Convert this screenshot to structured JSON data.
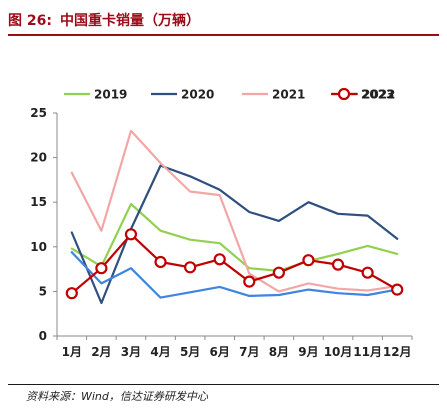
{
  "figure": {
    "number_label": "图 26:",
    "title": "中国重卡销量（万辆）"
  },
  "source": "资料来源：Wind，信达证券研发中心",
  "colors": {
    "header_rule": "#9c0b18",
    "s2019": "#92d050",
    "s2020": "#2f4f7f",
    "s2021": "#f4a6a6",
    "s2022": "#3d85e0",
    "s2023": "#c00000"
  },
  "chart_data": {
    "type": "line",
    "title": "",
    "xlabel": "",
    "ylabel": "",
    "categories": [
      "1月",
      "2月",
      "3月",
      "4月",
      "5月",
      "6月",
      "7月",
      "8月",
      "9月",
      "10月",
      "11月",
      "12月"
    ],
    "ylim": [
      0,
      25
    ],
    "yticks": [
      0,
      5,
      10,
      15,
      20,
      25
    ],
    "grid": false,
    "legend_position": "top",
    "series": [
      {
        "name": "2019",
        "color": "#92d050",
        "marker": "none",
        "values": [
          9.8,
          7.8,
          14.8,
          11.8,
          10.8,
          10.4,
          7.6,
          7.3,
          8.4,
          9.2,
          10.1,
          9.2
        ]
      },
      {
        "name": "2020",
        "color": "#2f4f7f",
        "marker": "none",
        "values": [
          11.6,
          3.7,
          12.0,
          19.1,
          17.9,
          16.4,
          13.9,
          12.9,
          15.0,
          13.7,
          13.5,
          10.9
        ]
      },
      {
        "name": "2021",
        "color": "#f4a6a6",
        "marker": "none",
        "values": [
          18.3,
          11.8,
          23.0,
          19.4,
          16.2,
          15.8,
          7.0,
          5.0,
          5.9,
          5.3,
          5.1,
          5.6
        ]
      },
      {
        "name": "2022",
        "color": "#3d85e0",
        "marker": "none",
        "values": [
          9.4,
          5.9,
          7.6,
          4.3,
          4.9,
          5.5,
          4.5,
          4.6,
          5.2,
          4.8,
          4.6,
          5.2
        ]
      },
      {
        "name": "2023",
        "color": "#c00000",
        "marker": "circle",
        "values": [
          4.8,
          7.6,
          11.4,
          8.3,
          7.7,
          8.6,
          6.1,
          7.1,
          8.5,
          8.0,
          7.1,
          5.2
        ]
      }
    ]
  }
}
